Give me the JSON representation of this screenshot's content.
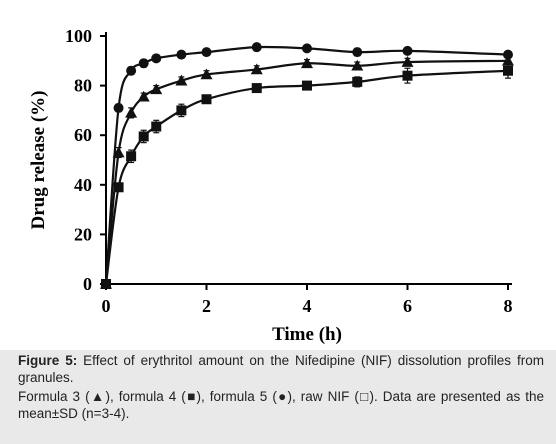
{
  "chart_data": {
    "type": "line",
    "title": "",
    "xlabel": "Time (h)",
    "ylabel": "Drug release (%)",
    "xlim": [
      0,
      8
    ],
    "ylim": [
      0,
      100
    ],
    "xticks": [
      "0",
      "2",
      "4",
      "6",
      "8"
    ],
    "yticks": [
      "0",
      "20",
      "40",
      "60",
      "80",
      "100"
    ],
    "grid": false,
    "legend": "none",
    "series": [
      {
        "marker": "circle",
        "color": "#111111",
        "x": [
          0,
          0.25,
          0.5,
          0.75,
          1,
          1.5,
          2,
          3,
          4,
          5,
          6,
          8
        ],
        "values": [
          0,
          71,
          86,
          89,
          91,
          92.5,
          93.5,
          95.5,
          95,
          93.5,
          94,
          92.5
        ],
        "errors": [
          0,
          1.5,
          1.5,
          1.5,
          1,
          1,
          1,
          1,
          1,
          1.5,
          1,
          1
        ]
      },
      {
        "marker": "triangle",
        "color": "#111111",
        "x": [
          0,
          0.25,
          0.5,
          0.75,
          1,
          1.5,
          2,
          3,
          4,
          5,
          6,
          8
        ],
        "values": [
          0,
          53,
          69,
          75.5,
          78.5,
          82,
          84.5,
          86.5,
          89,
          88,
          89.5,
          90
        ],
        "errors": [
          0,
          2,
          2,
          1.5,
          1.5,
          1.5,
          1.5,
          1.5,
          1.5,
          1.5,
          1.5,
          1.5
        ]
      },
      {
        "marker": "square",
        "color": "#111111",
        "x": [
          0,
          0.25,
          0.5,
          0.75,
          1,
          1.5,
          2,
          3,
          4,
          5,
          6,
          8
        ],
        "values": [
          0,
          39,
          51.5,
          59.5,
          63.5,
          70,
          74.5,
          79,
          80,
          81.5,
          84,
          86
        ],
        "errors": [
          0,
          1.5,
          2.5,
          2.5,
          2.5,
          2.5,
          1.5,
          1.5,
          1.5,
          2,
          3,
          3
        ]
      }
    ]
  },
  "caption": {
    "label": "Figure 5:",
    "text": " Effect of erythritol amount on the Nifedipine (NIF) dissolution profiles from granules.",
    "note": "Formula 3 (▲), formula 4 (■), formula 5 (●), raw NIF (□). Data are presented as the mean±SD (n=3-4)."
  }
}
